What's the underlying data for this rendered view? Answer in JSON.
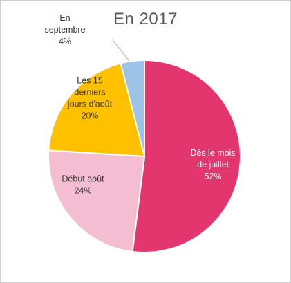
{
  "chart_data": {
    "type": "pie",
    "title": "En 2017",
    "slices": [
      {
        "lines": [
          "Dès le mois",
          "de juillet",
          "52%"
        ],
        "value": 52,
        "color": "#E3366F"
      },
      {
        "lines": [
          "Début août",
          "24%"
        ],
        "value": 24,
        "color": "#F4BDD1"
      },
      {
        "lines": [
          "Les 15",
          "derniers",
          "jours d'août",
          "20%"
        ],
        "value": 20,
        "color": "#FFC000"
      },
      {
        "lines": [
          "En",
          "septembre",
          "4%"
        ],
        "value": 4,
        "color": "#9DC3E6"
      }
    ],
    "legend": "none",
    "labels": "inside-with-one-outside-callout"
  }
}
